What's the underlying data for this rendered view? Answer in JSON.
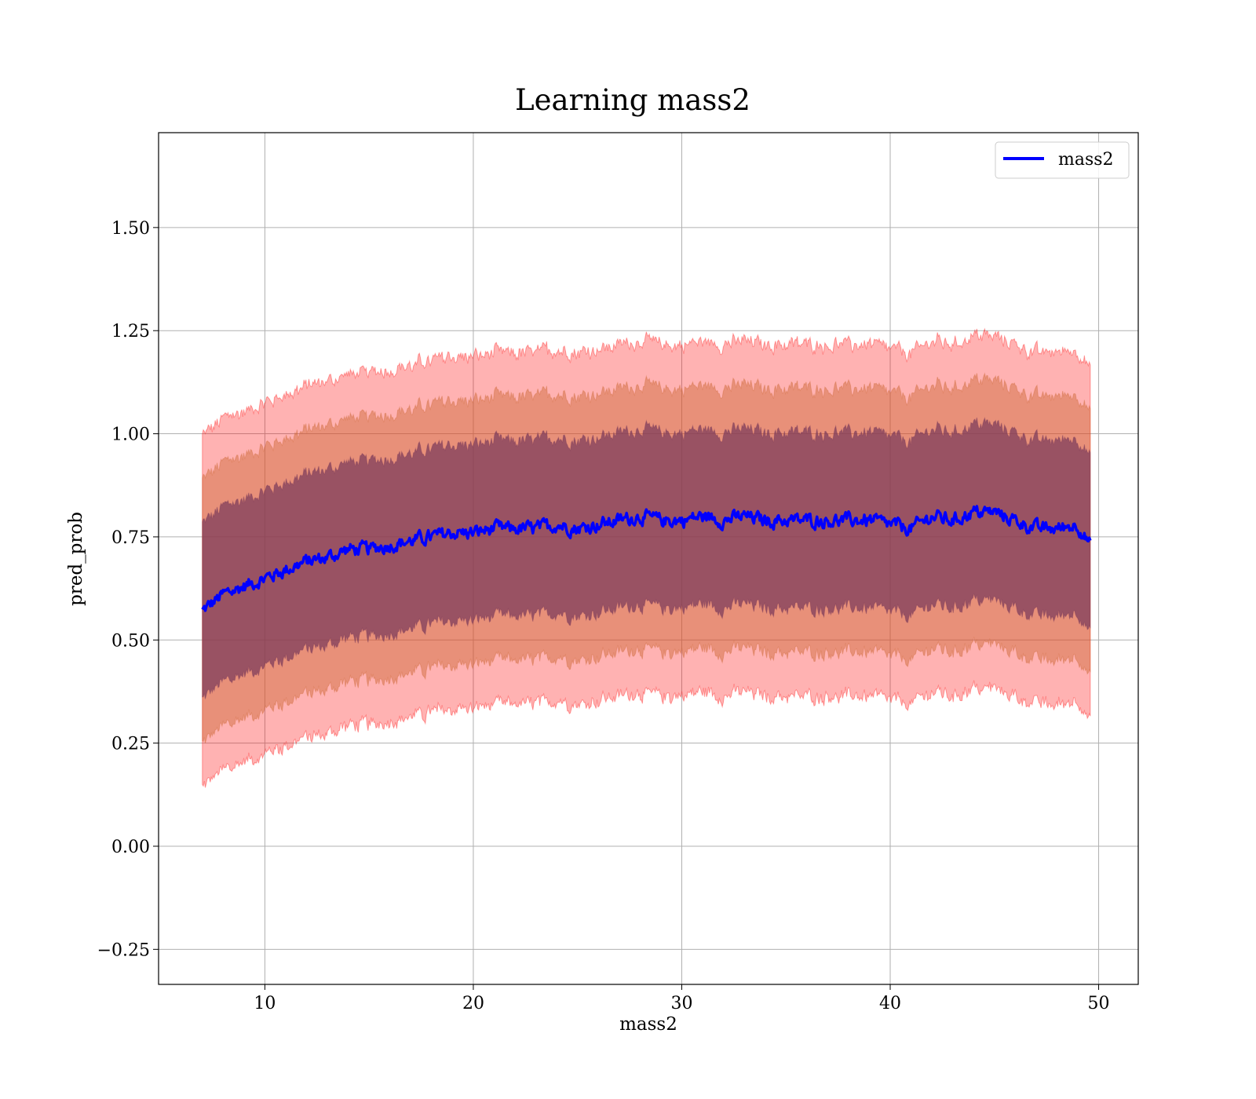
{
  "chart_data": {
    "type": "line",
    "title": "Learning mass2",
    "xlabel": "mass2",
    "ylabel": "pred_prob",
    "xlim": [
      4.9,
      51.9
    ],
    "ylim": [
      -0.335,
      1.73
    ],
    "x_ticks": [
      10,
      20,
      30,
      40,
      50
    ],
    "x_tick_labels": [
      "10",
      "20",
      "30",
      "40",
      "50"
    ],
    "y_ticks": [
      -0.25,
      0,
      0.25,
      0.5,
      0.75,
      1.0,
      1.25,
      1.5
    ],
    "y_tick_labels": [
      "−0.25",
      "0.00",
      "0.25",
      "0.50",
      "0.75",
      "1.00",
      "1.25",
      "1.50"
    ],
    "grid": true,
    "legend_position": "top-right",
    "colors": {
      "mean_line": "#0000ff",
      "band_outer": "#ff0000",
      "band_middle": "#cc6633",
      "band_inner": "#7a3a5a",
      "grid": "#b0b0b0"
    },
    "bands_description_std_multiples": [
      1,
      1.5,
      2
    ],
    "series": [
      {
        "name": "mass2",
        "x": [
          7.0,
          8.0,
          9.0,
          10.0,
          11.0,
          12.0,
          13.0,
          14.0,
          15.0,
          16.0,
          17.0,
          18.0,
          19.0,
          20.0,
          21.0,
          22.0,
          23.0,
          24.0,
          25.0,
          26.0,
          27.0,
          28.0,
          29.0,
          30.0,
          31.0,
          32.0,
          33.0,
          34.0,
          35.0,
          36.0,
          37.0,
          38.0,
          39.0,
          40.0,
          41.0,
          42.0,
          43.0,
          44.0,
          45.0,
          46.0,
          47.0,
          48.0,
          49.0,
          49.6
        ],
        "mean": [
          0.57,
          0.61,
          0.63,
          0.65,
          0.67,
          0.69,
          0.7,
          0.72,
          0.72,
          0.73,
          0.74,
          0.75,
          0.76,
          0.76,
          0.77,
          0.77,
          0.77,
          0.78,
          0.77,
          0.78,
          0.79,
          0.8,
          0.79,
          0.79,
          0.8,
          0.79,
          0.8,
          0.79,
          0.79,
          0.79,
          0.79,
          0.79,
          0.79,
          0.78,
          0.77,
          0.8,
          0.79,
          0.81,
          0.81,
          0.79,
          0.77,
          0.77,
          0.78,
          0.73
        ],
        "std": [
          0.21,
          0.21,
          0.21,
          0.21,
          0.21,
          0.21,
          0.21,
          0.21,
          0.21,
          0.21,
          0.21,
          0.21,
          0.21,
          0.21,
          0.21,
          0.21,
          0.21,
          0.21,
          0.21,
          0.21,
          0.21,
          0.21,
          0.21,
          0.21,
          0.21,
          0.21,
          0.21,
          0.21,
          0.21,
          0.21,
          0.21,
          0.21,
          0.21,
          0.21,
          0.21,
          0.21,
          0.21,
          0.21,
          0.21,
          0.21,
          0.21,
          0.21,
          0.21,
          0.21
        ]
      }
    ]
  }
}
